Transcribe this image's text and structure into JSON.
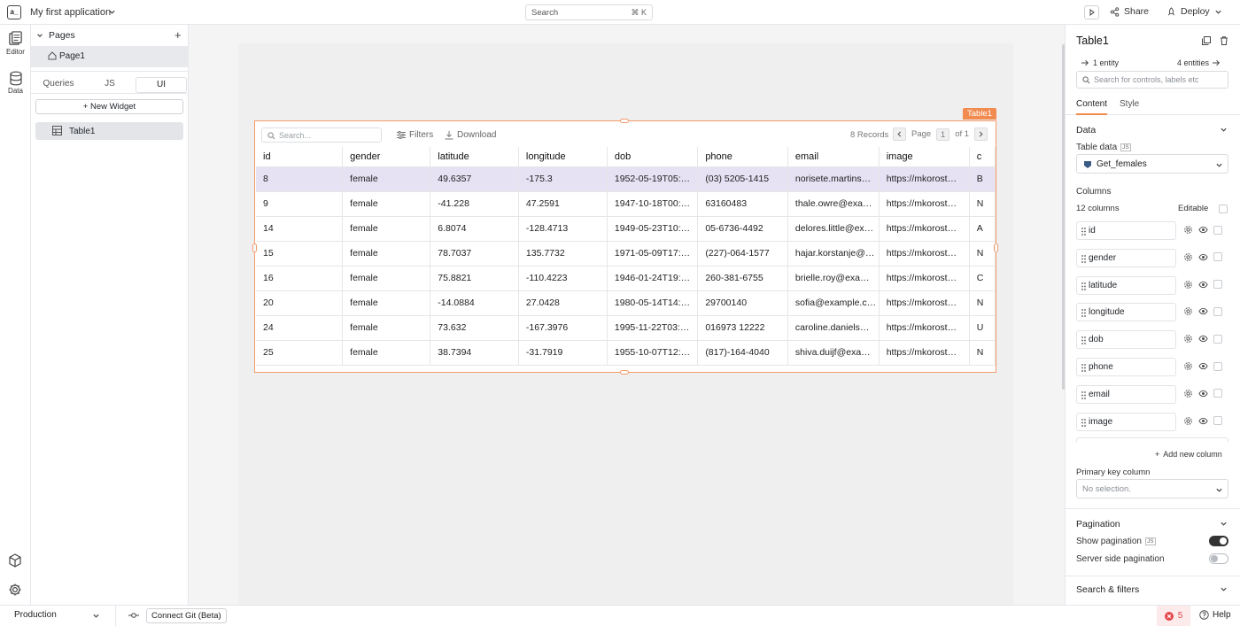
{
  "app": {
    "logo_text": "a_",
    "name": "My first application"
  },
  "topbar": {
    "search_label": "Search",
    "search_shortcut": "⌘ K",
    "share_label": "Share",
    "deploy_label": "Deploy"
  },
  "rail": {
    "editor_label": "Editor",
    "data_label": "Data"
  },
  "pages": {
    "header": "Pages",
    "items": [
      "Page1"
    ]
  },
  "explorer_tabs": [
    "Queries",
    "JS",
    "UI"
  ],
  "active_tab": "UI",
  "new_widget_label": "+ New Widget",
  "widgets": [
    "Table1"
  ],
  "table": {
    "widget_name": "Table1",
    "search_placeholder": "Search...",
    "filters_label": "Filters",
    "download_label": "Download",
    "records_label": "8 Records",
    "page_label": "Page",
    "page_number": "1",
    "page_of": "of 1",
    "columns": [
      "id",
      "gender",
      "latitude",
      "longitude",
      "dob",
      "phone",
      "email",
      "image",
      "c"
    ],
    "rows": [
      [
        "8",
        "female",
        "49.6357",
        "-175.3",
        "1952-05-19T05:…",
        "(03) 5205-1415",
        "norisete.martins…",
        "https://mkorost…",
        "B"
      ],
      [
        "9",
        "female",
        "-41.228",
        "47.2591",
        "1947-10-18T00:…",
        "63160483",
        "thale.owre@exa…",
        "https://mkorost…",
        "N"
      ],
      [
        "14",
        "female",
        "6.8074",
        "-128.4713",
        "1949-05-23T10:…",
        "05-6736-4492",
        "delores.little@ex…",
        "https://mkorost…",
        "A"
      ],
      [
        "15",
        "female",
        "78.7037",
        "135.7732",
        "1971-05-09T17:…",
        "(227)-064-1577",
        "hajar.korstanje@…",
        "https://mkorost…",
        "N"
      ],
      [
        "16",
        "female",
        "75.8821",
        "-110.4223",
        "1946-01-24T19:…",
        "260-381-6755",
        "brielle.roy@exa…",
        "https://mkorost…",
        "C"
      ],
      [
        "20",
        "female",
        "-14.0884",
        "27.0428",
        "1980-05-14T14:…",
        "29700140",
        "sofia@example.c…",
        "https://mkorost…",
        "N"
      ],
      [
        "24",
        "female",
        "73.632",
        "-167.3976",
        "1995-11-22T03:…",
        "016973 12222",
        "caroline.daniels…",
        "https://mkorost…",
        "U"
      ],
      [
        "25",
        "female",
        "38.7394",
        "-31.7919",
        "1955-10-07T12:…",
        "(817)-164-4040",
        "shiva.duijf@exa…",
        "https://mkorost…",
        "N"
      ]
    ]
  },
  "property_pane": {
    "title": "Table1",
    "entity_link": "1 entity",
    "entities_link": "4 entities",
    "search_placeholder": "Search for controls, labels etc",
    "tabs": [
      "Content",
      "Style"
    ],
    "data_section": "Data",
    "table_data_label": "Table data",
    "js_badge": "JS",
    "table_data_value": "Get_females",
    "columns_label": "Columns",
    "columns_count": "12 columns",
    "editable_label": "Editable",
    "column_items": [
      "id",
      "gender",
      "latitude",
      "longitude",
      "dob",
      "phone",
      "email",
      "image"
    ],
    "add_column_label": "Add new column",
    "primary_key_label": "Primary key column",
    "primary_key_placeholder": "No selection.",
    "pagination_section": "Pagination",
    "show_pagination_label": "Show pagination",
    "show_pagination_on": true,
    "server_side_label": "Server side pagination",
    "server_side_on": false,
    "search_filters_section": "Search & filters"
  },
  "bottombar": {
    "environment": "Production",
    "connect_git": "Connect Git (Beta)",
    "error_count": "5",
    "help_label": "Help"
  },
  "colors": {
    "accent": "#f28b50",
    "selected_row": "#e6e1f3",
    "error": "#e5484d",
    "toggle_on": "#333333"
  }
}
